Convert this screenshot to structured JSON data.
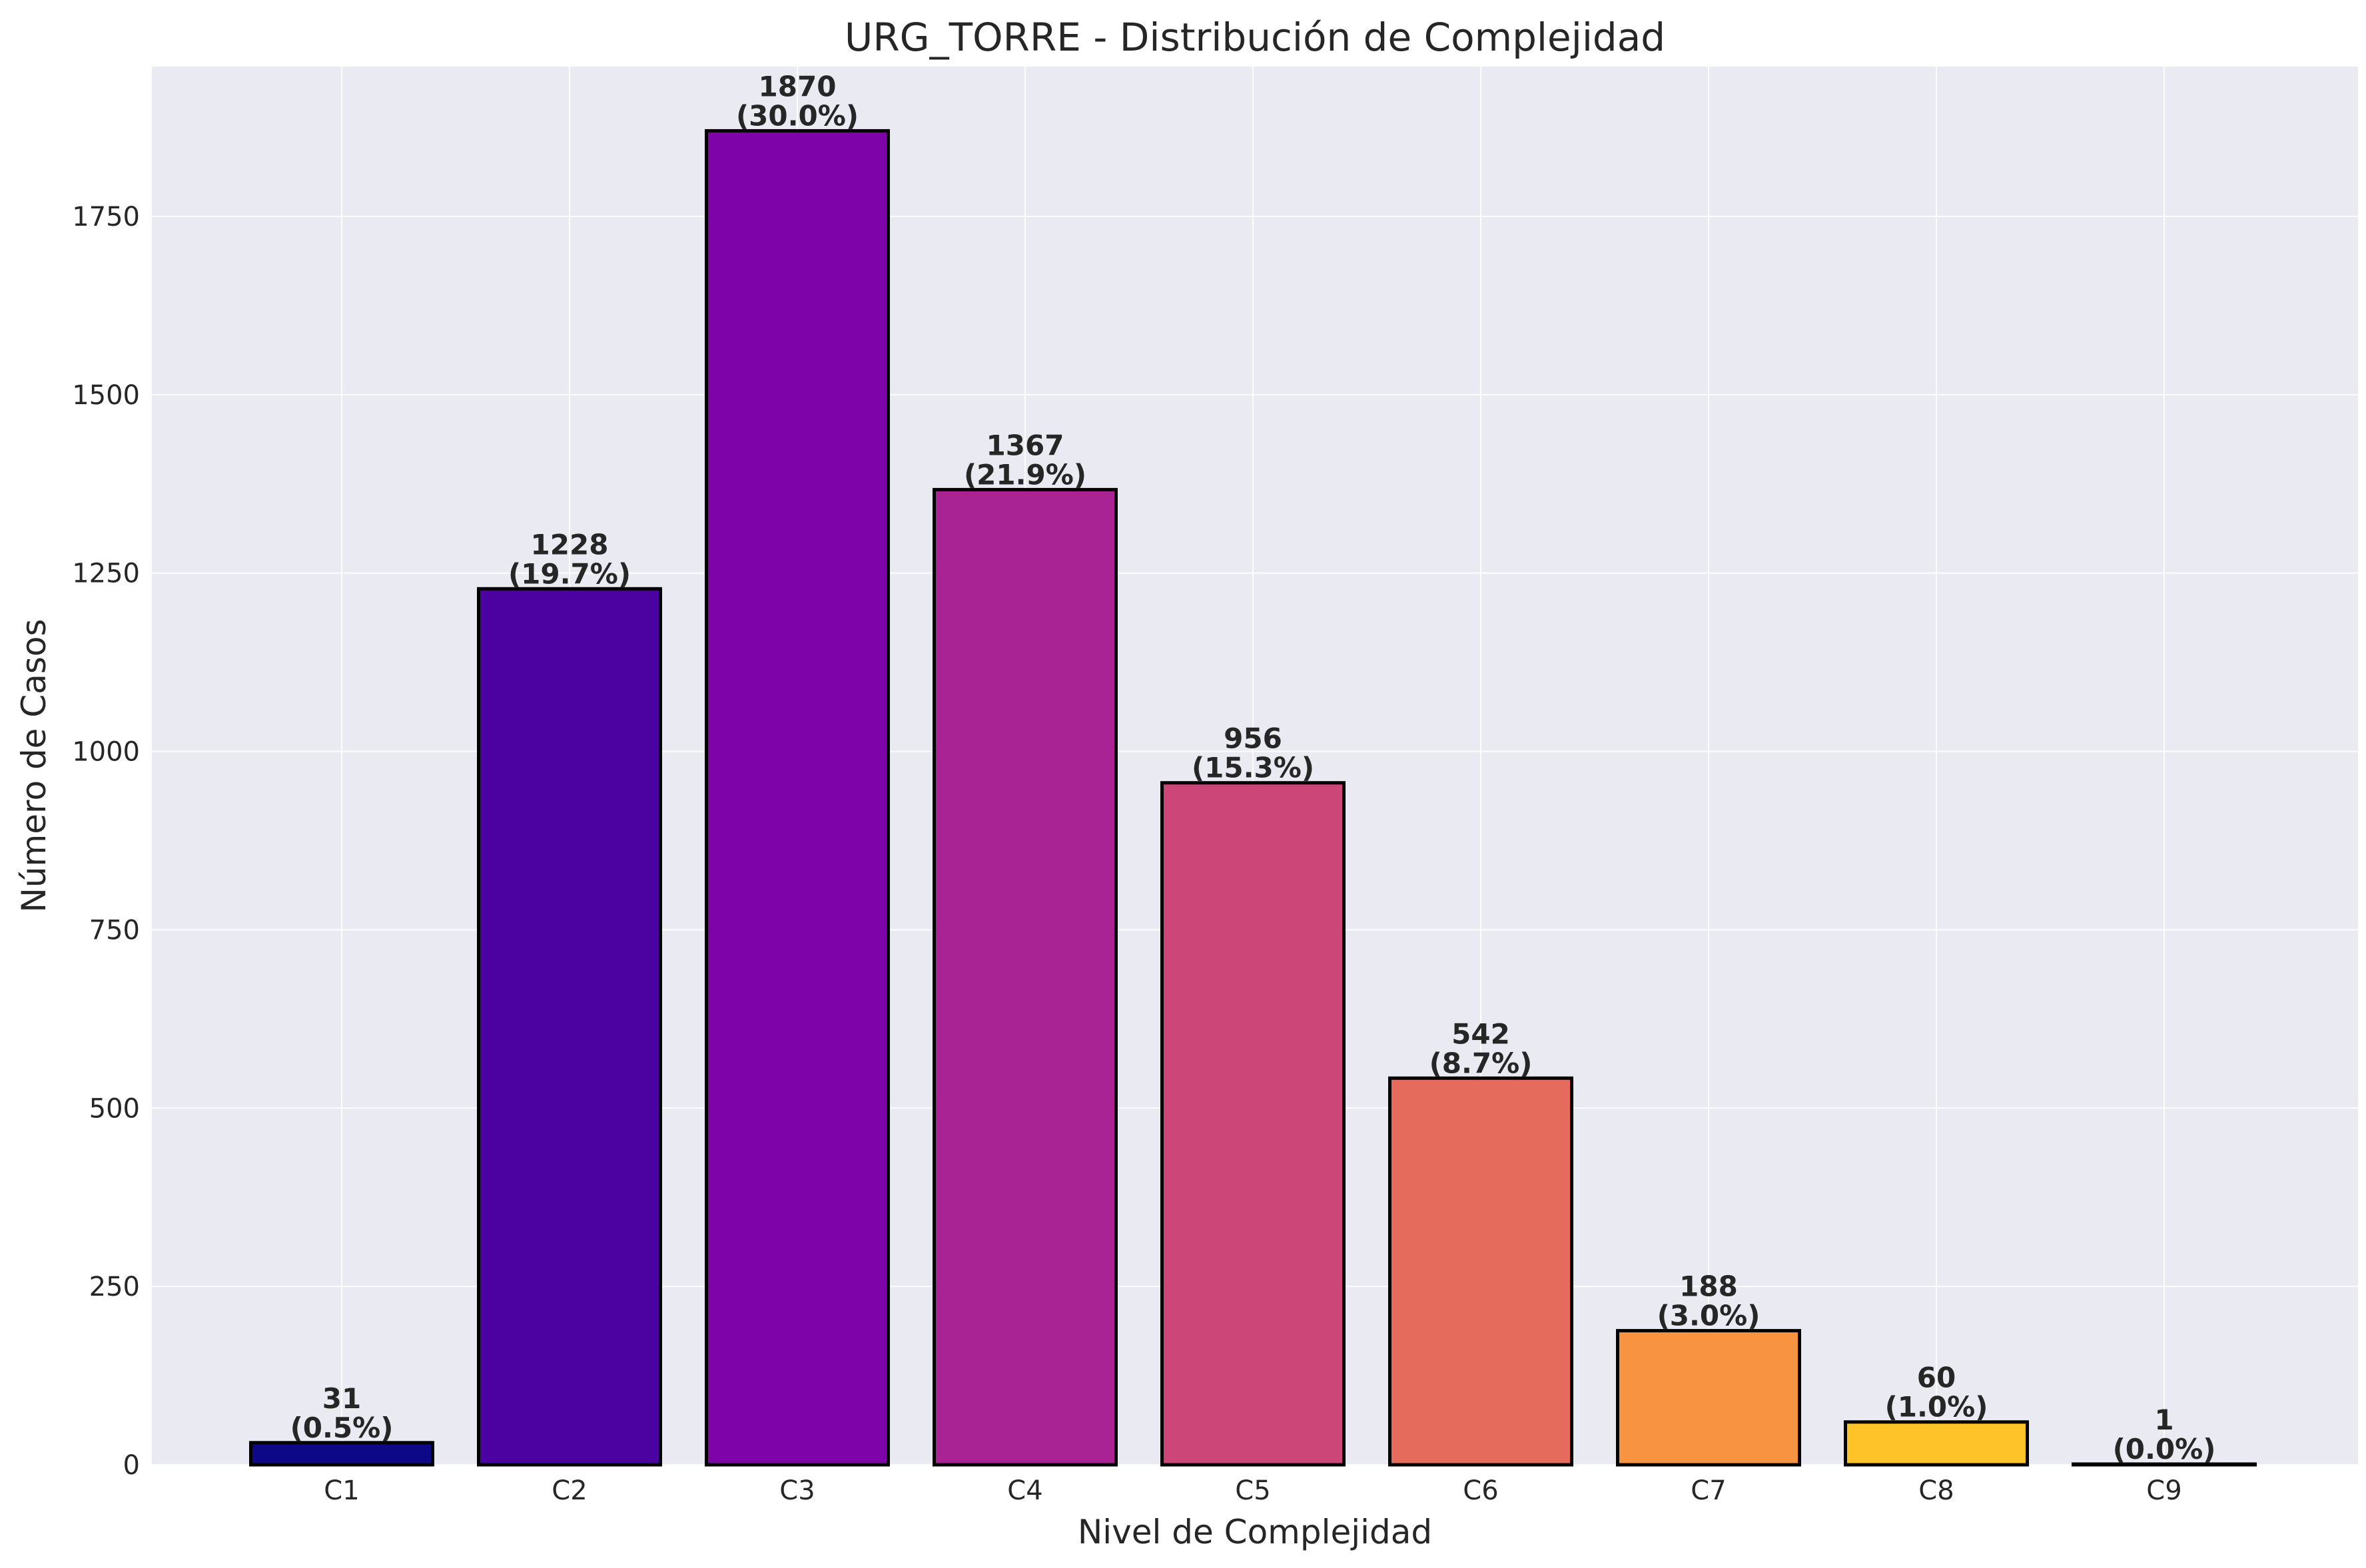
{
  "chart_data": {
    "type": "bar",
    "title": "URG_TORRE - Distribución de Complejidad",
    "xlabel": "Nivel de Complejidad",
    "ylabel": "Número de Casos",
    "categories": [
      "C1",
      "C2",
      "C3",
      "C4",
      "C5",
      "C6",
      "C7",
      "C8",
      "C9"
    ],
    "values": [
      31,
      1228,
      1870,
      1367,
      956,
      542,
      188,
      60,
      1
    ],
    "percent_labels": [
      "(0.5%)",
      "(19.7%)",
      "(30.0%)",
      "(21.9%)",
      "(15.3%)",
      "(8.7%)",
      "(3.0%)",
      "(1.0%)",
      "(0.0%)"
    ],
    "colors": [
      "#0d0887",
      "#4c02a1",
      "#7e03a8",
      "#a92395",
      "#cc4778",
      "#e56b5d",
      "#f89441",
      "#fdc328",
      "#f0f921"
    ],
    "ylim": [
      0,
      1960
    ],
    "yticks": [
      0,
      250,
      500,
      750,
      1000,
      1250,
      1500,
      1750
    ],
    "grid": true,
    "background": "#eaeaf2"
  }
}
